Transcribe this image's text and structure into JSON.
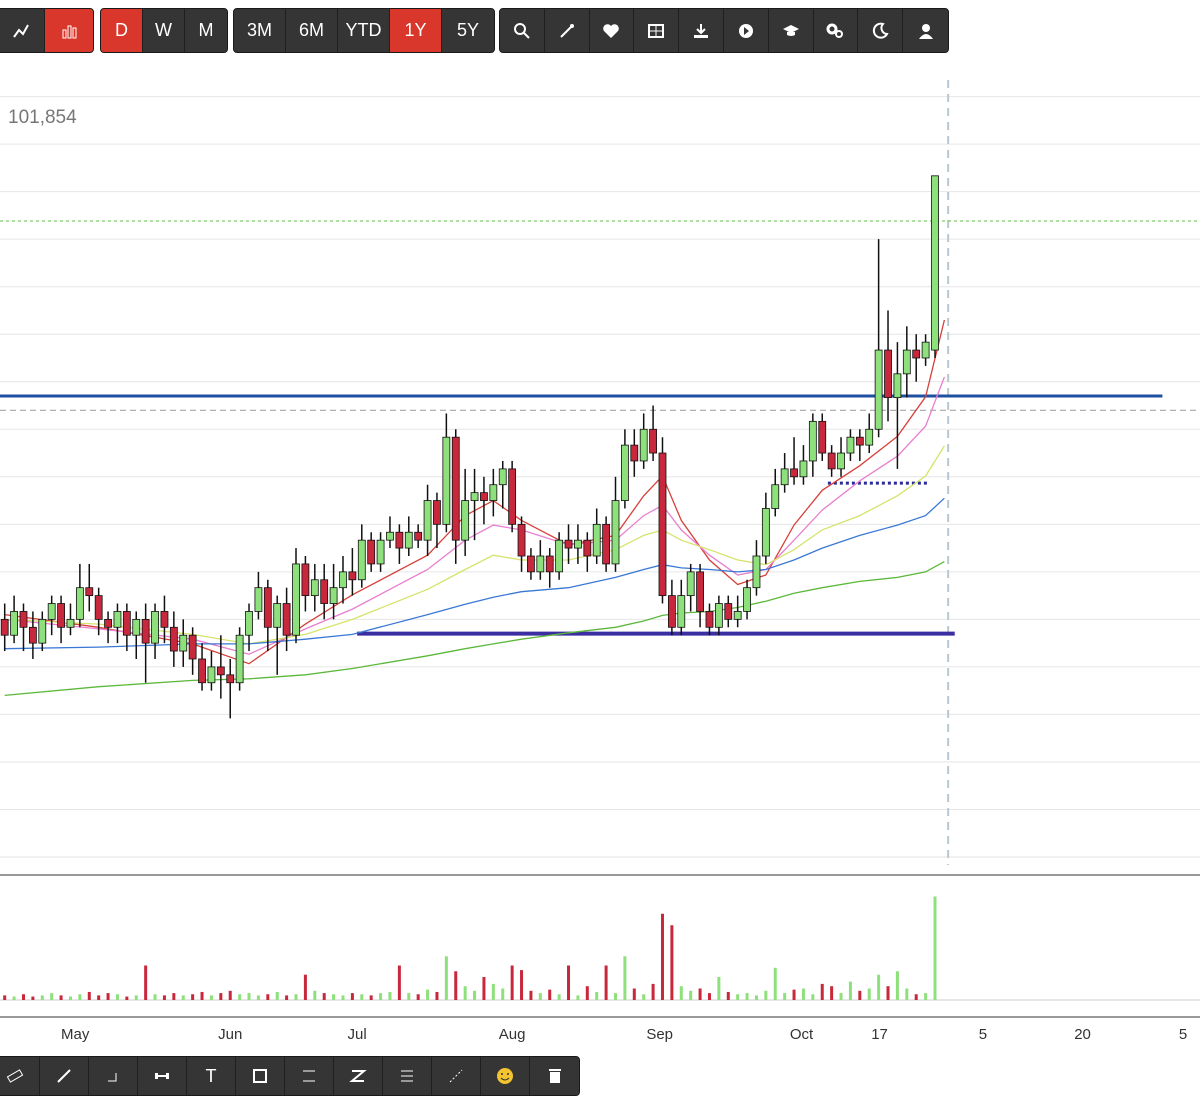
{
  "toolbar": {
    "intervals": [
      {
        "label": "D",
        "active": true
      },
      {
        "label": "W",
        "active": false
      },
      {
        "label": "M",
        "active": false
      }
    ],
    "ranges": [
      {
        "label": "3M",
        "active": false
      },
      {
        "label": "6M",
        "active": false
      },
      {
        "label": "YTD",
        "active": false
      },
      {
        "label": "1Y",
        "active": true
      },
      {
        "label": "5Y",
        "active": false
      }
    ]
  },
  "drawing_toolbar": {
    "text_tool": "T"
  },
  "chart_data": {
    "type": "candlestick",
    "price_label": "101,854",
    "xlim": [
      -0.5,
      127.2
    ],
    "xticks": [
      {
        "value": 7.5,
        "label": "May"
      },
      {
        "value": 24,
        "label": "Jun"
      },
      {
        "value": 37.5,
        "label": "Jul"
      },
      {
        "value": 54,
        "label": "Aug"
      },
      {
        "value": 69.7,
        "label": "Sep"
      },
      {
        "value": 84.8,
        "label": "Oct"
      },
      {
        "value": 93.1,
        "label": "17"
      },
      {
        "value": 104.1,
        "label": "5"
      },
      {
        "value": 114.7,
        "label": "20"
      },
      {
        "value": 125.4,
        "label": "5"
      }
    ],
    "ylim": [
      0,
      101
    ],
    "yticks": [
      0,
      6,
      12,
      18,
      24,
      30,
      36,
      42,
      48,
      54,
      60,
      66,
      72,
      78,
      84,
      90,
      96
    ],
    "grid": true,
    "up_color": "#8ee07c",
    "down_color": "#c8283c",
    "open": [
      30,
      28,
      31,
      29,
      27,
      30,
      32,
      29,
      30,
      34,
      33,
      30,
      29,
      31,
      28,
      30,
      27,
      31,
      29,
      26,
      28,
      25,
      22,
      24,
      23,
      22,
      28,
      31,
      34,
      29,
      32,
      28,
      37,
      33,
      35,
      32,
      34,
      36,
      35,
      40,
      37,
      40,
      41,
      39,
      41,
      40,
      45,
      42,
      53,
      40,
      45,
      46,
      45,
      47,
      49,
      42,
      38,
      36,
      38,
      36,
      40,
      39,
      40,
      38,
      42,
      37,
      45,
      52,
      50,
      54,
      51,
      33,
      29,
      33,
      36,
      31,
      29,
      32,
      30,
      31,
      34,
      38,
      44,
      47,
      49,
      48,
      50,
      55,
      51,
      49,
      51,
      53,
      52,
      54,
      64,
      58,
      61,
      64,
      63,
      64
    ],
    "high": [
      32,
      33,
      32,
      31,
      31,
      33,
      33,
      32,
      37,
      37,
      34,
      31,
      32,
      32,
      31,
      32,
      32,
      33,
      31,
      30,
      29,
      27,
      26,
      28,
      25,
      29,
      32,
      36,
      35,
      33,
      34,
      39,
      38,
      37,
      37,
      37,
      38,
      39,
      42,
      41,
      41,
      43,
      42,
      43,
      42,
      47,
      46,
      56,
      54,
      49,
      49,
      48,
      49,
      50,
      50,
      43,
      39,
      40,
      39,
      41,
      42,
      42,
      41,
      44,
      43,
      48,
      54,
      54,
      56,
      57,
      53,
      35,
      35,
      37,
      37,
      32,
      33,
      33,
      33,
      35,
      40,
      46,
      49,
      51,
      53,
      52,
      56,
      56,
      52,
      53,
      54,
      54,
      56,
      78,
      69,
      65,
      67,
      66,
      66,
      86
    ],
    "low": [
      26,
      27,
      26,
      25,
      26,
      28,
      27,
      28,
      29,
      31,
      28,
      27,
      27,
      26,
      25,
      22,
      25,
      27,
      24,
      24,
      23,
      21,
      21,
      20,
      17.5,
      21,
      26,
      30,
      26,
      23,
      26,
      27,
      31,
      31,
      30,
      30,
      32,
      33,
      34,
      36,
      36,
      39,
      37,
      38,
      39,
      38,
      39,
      41,
      37,
      38,
      40,
      42,
      43,
      44,
      41,
      36,
      35,
      35,
      34,
      35,
      37,
      37,
      36,
      37,
      36,
      36,
      44,
      48,
      49,
      50,
      32,
      28,
      28,
      31,
      29,
      28,
      28,
      29,
      29,
      30,
      33,
      37,
      43,
      46,
      47,
      47,
      48,
      50,
      48,
      48,
      50,
      50,
      51,
      53,
      55,
      49,
      58,
      60,
      62,
      63
    ],
    "close": [
      28,
      31,
      29,
      27,
      30,
      32,
      29,
      30,
      34,
      33,
      30,
      29,
      31,
      28,
      30,
      27,
      31,
      29,
      26,
      28,
      25,
      22,
      24,
      23,
      22,
      28,
      31,
      34,
      29,
      32,
      28,
      37,
      33,
      35,
      32,
      34,
      36,
      35,
      40,
      37,
      40,
      41,
      39,
      41,
      40,
      45,
      42,
      53,
      40,
      45,
      46,
      45,
      47,
      49,
      42,
      38,
      36,
      38,
      36,
      40,
      39,
      40,
      38,
      42,
      37,
      45,
      52,
      50,
      54,
      51,
      33,
      29,
      33,
      36,
      31,
      29,
      32,
      30,
      31,
      34,
      38,
      44,
      47,
      49,
      48,
      50,
      55,
      51,
      49,
      51,
      53,
      52,
      54,
      64,
      58,
      61,
      64,
      63,
      65,
      86
    ],
    "volume": {
      "ylim": [
        0,
        100
      ],
      "values": [
        4,
        3,
        5,
        3,
        4,
        6,
        4,
        3,
        5,
        7,
        4,
        6,
        5,
        3,
        4,
        30,
        5,
        4,
        6,
        4,
        5,
        7,
        4,
        6,
        8,
        5,
        6,
        4,
        5,
        7,
        4,
        5,
        22,
        8,
        6,
        5,
        4,
        6,
        5,
        4,
        6,
        7,
        30,
        6,
        5,
        9,
        7,
        38,
        25,
        12,
        8,
        20,
        14,
        10,
        30,
        26,
        8,
        6,
        9,
        5,
        30,
        4,
        12,
        7,
        30,
        6,
        38,
        10,
        5,
        14,
        75,
        65,
        12,
        8,
        10,
        6,
        20,
        7,
        5,
        6,
        4,
        8,
        28,
        6,
        9,
        10,
        5,
        14,
        12,
        6,
        16,
        8,
        10,
        22,
        12,
        25,
        10,
        5,
        6,
        90
      ]
    },
    "moving_averages": [
      {
        "color": "#d6403a",
        "x": [
          0,
          10,
          20,
          26,
          32,
          37,
          45,
          49,
          52,
          55,
          60,
          65,
          68,
          70,
          72,
          75,
          78,
          81,
          84,
          87,
          91,
          95,
          98,
          100
        ],
        "values": [
          30.6,
          29,
          26.9,
          24.4,
          29.4,
          33.1,
          38.1,
          43.1,
          45,
          42.5,
          39.4,
          40.6,
          45.6,
          48.1,
          42.5,
          37.5,
          34.4,
          35.6,
          41.9,
          46.3,
          49.4,
          53.1,
          58.1,
          67.8
        ]
      },
      {
        "color": "#e87fd0",
        "x": [
          0,
          10,
          20,
          26,
          32,
          37,
          45,
          49,
          52,
          55,
          60,
          65,
          68,
          70,
          72,
          75,
          78,
          81,
          84,
          87,
          91,
          95,
          98,
          100
        ],
        "values": [
          30,
          28.8,
          27.5,
          25.6,
          28.8,
          31.3,
          36.3,
          40,
          41.9,
          41.3,
          39.4,
          40,
          43.1,
          44.4,
          41.3,
          38.1,
          35.6,
          36.3,
          40,
          43.8,
          47.5,
          50.6,
          54.4,
          60.6
        ]
      },
      {
        "color": "#d6e36a",
        "x": [
          0,
          10,
          20,
          26,
          32,
          37,
          45,
          49,
          52,
          55,
          60,
          65,
          68,
          70,
          72,
          75,
          78,
          81,
          84,
          87,
          91,
          95,
          98,
          100
        ],
        "values": [
          30,
          29.4,
          28.1,
          26.9,
          28.1,
          30,
          33.8,
          36.3,
          38.1,
          37.5,
          37.5,
          38.8,
          40.6,
          41.3,
          40,
          38.8,
          37.5,
          36.9,
          38.8,
          41.3,
          43.1,
          45.6,
          48.1,
          51.9
        ]
      },
      {
        "color": "#3a78d6",
        "x": [
          0,
          10,
          20,
          26,
          32,
          37,
          45,
          49,
          52,
          55,
          60,
          65,
          68,
          70,
          72,
          75,
          78,
          81,
          84,
          87,
          91,
          95,
          98,
          100
        ],
        "values": [
          26.3,
          26.5,
          26.9,
          26.9,
          27.5,
          28.1,
          30.6,
          31.9,
          32.8,
          33.5,
          34,
          35.3,
          36.3,
          36.9,
          36.5,
          36.3,
          36,
          36.3,
          37.5,
          39,
          40.6,
          41.9,
          43.1,
          45.3
        ]
      },
      {
        "color": "#5cb83a",
        "x": [
          0,
          10,
          20,
          26,
          32,
          37,
          45,
          49,
          52,
          55,
          60,
          65,
          68,
          70,
          72,
          75,
          78,
          81,
          84,
          87,
          91,
          95,
          98,
          100
        ],
        "values": [
          20.4,
          21.5,
          22.3,
          22.5,
          23,
          23.8,
          25.4,
          26.3,
          26.9,
          27.5,
          28.3,
          29,
          29.8,
          30.5,
          30.8,
          31,
          31.5,
          32.3,
          33.3,
          34,
          34.8,
          35.3,
          36,
          37.3
        ]
      }
    ],
    "lines": [
      {
        "value": 58.2,
        "from": -0.5,
        "to": 123.2,
        "color": "#1f4fa0",
        "style": "solid",
        "weight": "heavy"
      },
      {
        "value": 28.2,
        "from": 37.5,
        "to": 101.1,
        "color": "#3b2ea0",
        "style": "solid",
        "weight": "heavier"
      },
      {
        "value": 47.2,
        "from": 87.6,
        "to": 98.2,
        "color": "#2a2a9a",
        "style": "dotted",
        "weight": "heavy"
      },
      {
        "value": 56.4,
        "from": -0.5,
        "to": 127.2,
        "color": "#999999",
        "style": "dashed",
        "weight": "light"
      },
      {
        "value": 80.3,
        "from": -0.5,
        "to": 127.2,
        "color": "#5cc04a",
        "style": "dotted",
        "weight": "light"
      }
    ],
    "crosshair_x": 100.4
  }
}
